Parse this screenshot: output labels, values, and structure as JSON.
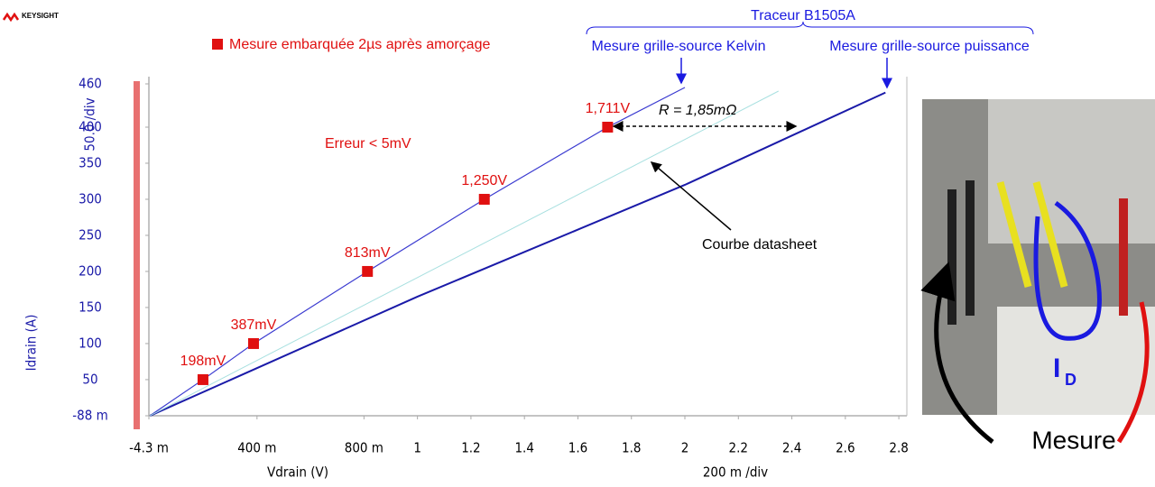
{
  "chart_data": {
    "type": "line",
    "logo": "KEYSIGHT",
    "x_label": "Vdrain (V)",
    "x_div": "200 m /div",
    "y_label": "Idrain (A)",
    "y_div": "50.0 /div",
    "xlim": [
      -0.0043,
      2.83
    ],
    "ylim": [
      -0.088,
      470
    ],
    "xticks": [
      {
        "value": -0.0043,
        "label": "-4.3 m"
      },
      {
        "value": 0.4,
        "label": "400 m"
      },
      {
        "value": 0.8,
        "label": "800 m"
      },
      1,
      1.2,
      1.4,
      1.6,
      1.8,
      2,
      2.2,
      2.4,
      2.6,
      2.8
    ],
    "yticks": [
      {
        "value": -0.088,
        "label": "-88 m"
      },
      50,
      100,
      150,
      200,
      250,
      300,
      350,
      400,
      460
    ],
    "grid": false,
    "series": [
      {
        "name": "Mesure grille-source Kelvin",
        "color": "#3a3ad0",
        "x": [
          0,
          0.198,
          0.387,
          0.813,
          1.25,
          1.711,
          2.0
        ],
        "values": [
          0,
          50,
          100,
          200,
          300,
          400,
          455
        ]
      },
      {
        "name": "Mesure grille-source puissance",
        "color": "#1a1aa8",
        "x": [
          0,
          1,
          2,
          2.75
        ],
        "values": [
          0,
          165,
          320,
          448
        ]
      },
      {
        "name": "Courbe datasheet",
        "color": "#a8e0e0",
        "x": [
          0,
          2.35
        ],
        "values": [
          0,
          450
        ]
      }
    ],
    "points": {
      "type": "scatter",
      "name": "Mesure embarquée 2µs après amorçage",
      "color": "#e01010",
      "x": [
        0.198,
        0.387,
        0.813,
        1.25,
        1.711
      ],
      "values": [
        50,
        100,
        200,
        300,
        400
      ],
      "x_labels": [
        "198mV",
        "387mV",
        "813mV",
        "1,250V",
        "1,711V"
      ]
    },
    "annotations": {
      "error": "Erreur < 5mV",
      "resistance": "R = 1,85mΩ",
      "tracer": "Traceur B1505A",
      "measure": "Mesure",
      "current": "I",
      "current_sub": "D"
    }
  }
}
